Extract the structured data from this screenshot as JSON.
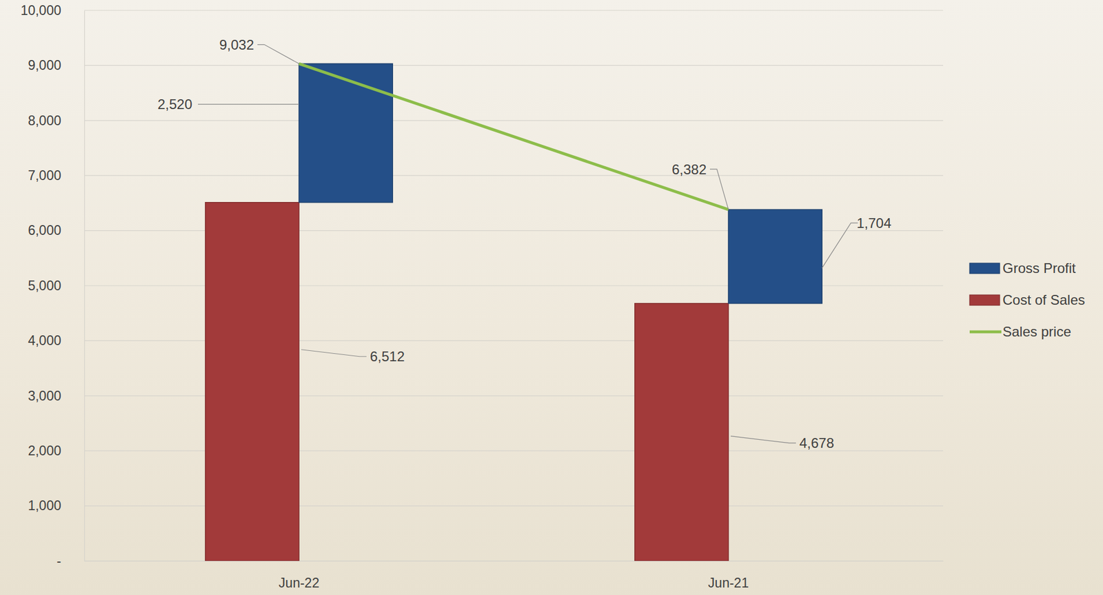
{
  "chart_data": {
    "type": "bar",
    "stacked": true,
    "categories": [
      "Jun-22",
      "Jun-21"
    ],
    "series": [
      {
        "name": "Cost of Sales",
        "type": "bar",
        "color": "#a23a3a",
        "values": [
          6512,
          4678
        ],
        "value_labels": [
          "6,512",
          "4,678"
        ]
      },
      {
        "name": "Gross Profit",
        "type": "bar",
        "color": "#244f88",
        "values": [
          2520,
          1704
        ],
        "value_labels": [
          "2,520",
          "1,704"
        ]
      },
      {
        "name": "Sales price",
        "type": "line",
        "color": "#8dbd4a",
        "values": [
          9032,
          6382
        ],
        "value_labels": [
          "9,032",
          "6,382"
        ]
      }
    ],
    "ylim": [
      0,
      10000
    ],
    "yticks": [
      {
        "value": 0,
        "label": "-"
      },
      {
        "value": 1000,
        "label": "1,000"
      },
      {
        "value": 2000,
        "label": "2,000"
      },
      {
        "value": 3000,
        "label": "3,000"
      },
      {
        "value": 4000,
        "label": "4,000"
      },
      {
        "value": 5000,
        "label": "5,000"
      },
      {
        "value": 6000,
        "label": "6,000"
      },
      {
        "value": 7000,
        "label": "7,000"
      },
      {
        "value": 8000,
        "label": "8,000"
      },
      {
        "value": 9000,
        "label": "9,000"
      },
      {
        "value": 10000,
        "label": "10,000"
      }
    ],
    "grid": true,
    "data_labels": true,
    "legend": "right"
  }
}
